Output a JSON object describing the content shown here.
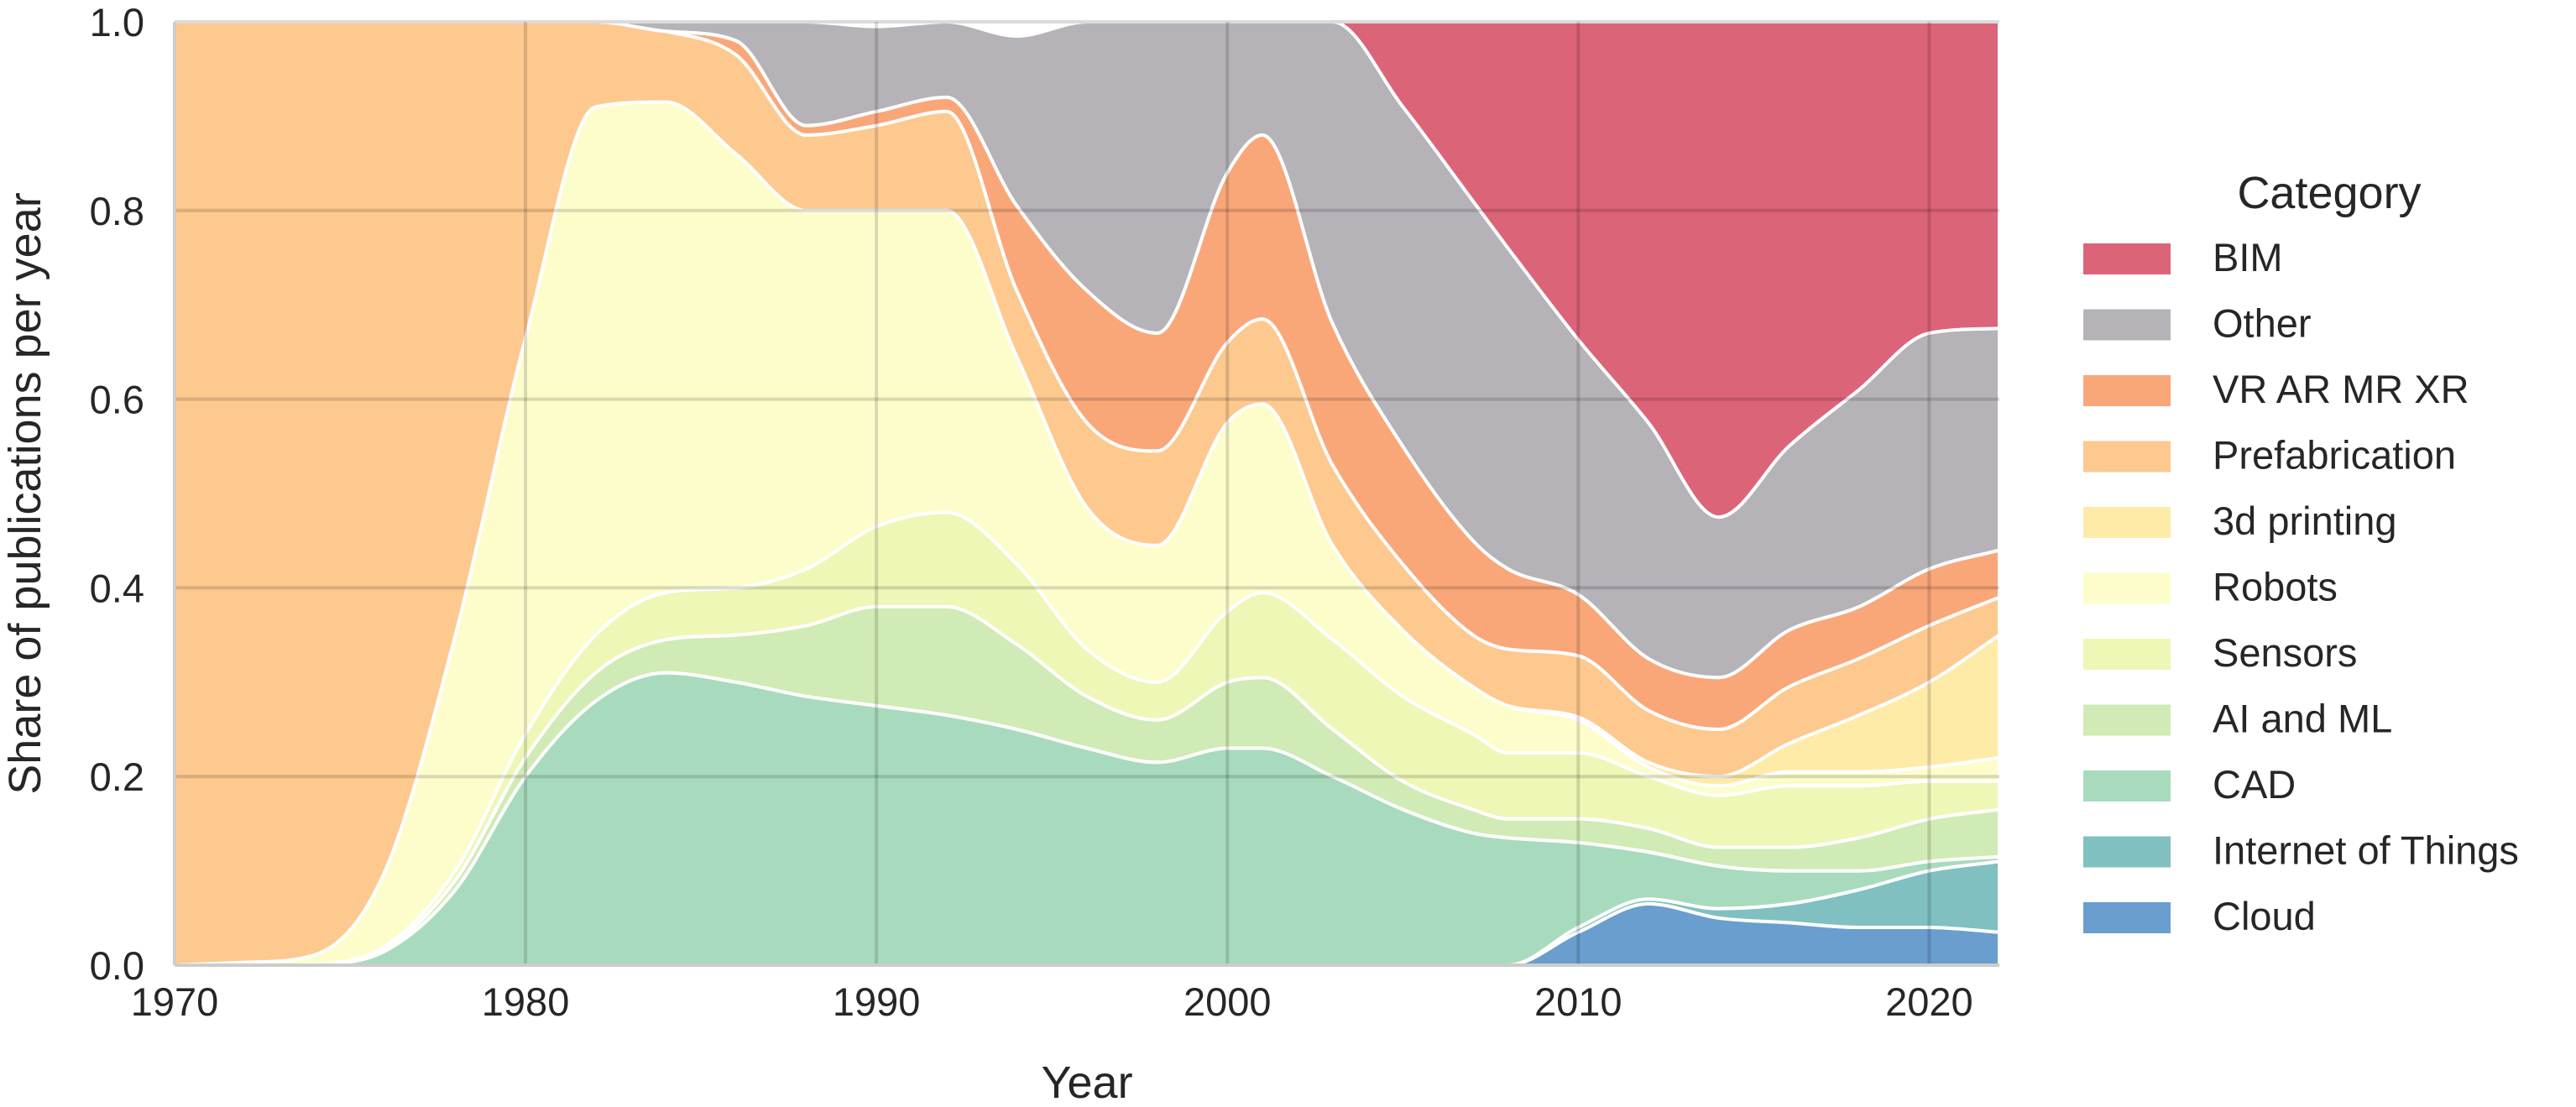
{
  "chart_data": {
    "type": "area",
    "stacked": "normalized",
    "xlabel": "Year",
    "ylabel": "Share of publications per year",
    "xlim": [
      1970,
      2022
    ],
    "ylim": [
      0,
      1
    ],
    "x_ticks": [
      "1970",
      "1980",
      "1990",
      "2000",
      "2010",
      "2020"
    ],
    "y_ticks": [
      "0.0",
      "0.2",
      "0.4",
      "0.6",
      "0.8",
      "1.0"
    ],
    "grid": true,
    "legend": {
      "title": "Category",
      "placement": "right"
    },
    "x": [
      1970,
      1972,
      1974,
      1976,
      1978,
      1980,
      1982,
      1984,
      1986,
      1988,
      1990,
      1992,
      1994,
      1996,
      1998,
      2000,
      2001,
      2003,
      2005,
      2007,
      2008,
      2010,
      2012,
      2014,
      2016,
      2018,
      2020,
      2022
    ],
    "series": [
      {
        "name": "Cloud",
        "color": "#6a9ecf",
        "values": [
          0,
          0,
          0,
          0,
          0,
          0,
          0,
          0,
          0,
          0,
          0,
          0,
          0,
          0,
          0,
          0,
          0,
          0,
          0,
          0,
          0,
          0.035,
          0.065,
          0.05,
          0.045,
          0.04,
          0.04,
          0.035
        ]
      },
      {
        "name": "Internet of Things",
        "color": "#80c0c1",
        "values": [
          0,
          0,
          0,
          0,
          0,
          0,
          0,
          0,
          0,
          0,
          0,
          0,
          0,
          0,
          0,
          0,
          0,
          0,
          0,
          0,
          0,
          0.005,
          0.005,
          0.01,
          0.02,
          0.04,
          0.06,
          0.075
        ]
      },
      {
        "name": "CAD",
        "color": "#a8dbbd",
        "values": [
          0,
          0,
          0.001,
          0.015,
          0.08,
          0.2,
          0.28,
          0.31,
          0.3,
          0.285,
          0.275,
          0.265,
          0.25,
          0.23,
          0.215,
          0.23,
          0.23,
          0.2,
          0.165,
          0.14,
          0.135,
          0.09,
          0.05,
          0.045,
          0.035,
          0.02,
          0.01,
          0.005
        ]
      },
      {
        "name": "AI and ML",
        "color": "#d0ebb5",
        "values": [
          0,
          0,
          0,
          0.002,
          0.01,
          0.02,
          0.03,
          0.035,
          0.05,
          0.075,
          0.105,
          0.115,
          0.09,
          0.055,
          0.045,
          0.07,
          0.075,
          0.05,
          0.03,
          0.025,
          0.02,
          0.025,
          0.025,
          0.02,
          0.025,
          0.035,
          0.045,
          0.05
        ]
      },
      {
        "name": "Sensors",
        "color": "#eef7b6",
        "values": [
          0,
          0,
          0,
          0.003,
          0.01,
          0.025,
          0.04,
          0.05,
          0.05,
          0.06,
          0.085,
          0.1,
          0.085,
          0.05,
          0.04,
          0.075,
          0.09,
          0.095,
          0.09,
          0.08,
          0.07,
          0.07,
          0.055,
          0.055,
          0.065,
          0.055,
          0.04,
          0.03
        ]
      },
      {
        "name": "Robots",
        "color": "#fdfdcc",
        "values": [
          0,
          0.003,
          0.01,
          0.08,
          0.25,
          0.42,
          0.56,
          0.52,
          0.46,
          0.38,
          0.335,
          0.32,
          0.22,
          0.15,
          0.145,
          0.2,
          0.2,
          0.1,
          0.07,
          0.05,
          0.05,
          0.035,
          0.01,
          0.01,
          0.015,
          0.015,
          0.015,
          0.025
        ]
      },
      {
        "name": "3d printing",
        "color": "#feeba7",
        "values": [
          0,
          0,
          0,
          0,
          0,
          0,
          0,
          0,
          0,
          0,
          0,
          0,
          0,
          0,
          0,
          0,
          0,
          0,
          0,
          0,
          0,
          0.003,
          0.005,
          0.01,
          0.03,
          0.06,
          0.09,
          0.13
        ]
      },
      {
        "name": "Prefabrication",
        "color": "#fdc98e",
        "values": [
          1,
          0.997,
          0.99,
          0.9,
          0.65,
          0.335,
          0.09,
          0.075,
          0.105,
          0.08,
          0.09,
          0.105,
          0.07,
          0.09,
          0.1,
          0.085,
          0.09,
          0.085,
          0.07,
          0.055,
          0.06,
          0.065,
          0.055,
          0.05,
          0.06,
          0.06,
          0.06,
          0.04
        ]
      },
      {
        "name": "VR AR MR XR",
        "color": "#f9a779",
        "values": [
          0,
          0,
          0,
          0,
          0,
          0,
          0,
          0,
          0.015,
          0.01,
          0.015,
          0.015,
          0.09,
          0.14,
          0.125,
          0.18,
          0.195,
          0.15,
          0.125,
          0.1,
          0.085,
          0.065,
          0.055,
          0.055,
          0.06,
          0.055,
          0.06,
          0.05
        ]
      },
      {
        "name": "Other",
        "color": "#b5b3b8",
        "values": [
          0,
          0,
          0,
          0,
          0,
          0,
          0,
          0.01,
          0.02,
          0.11,
          0.09,
          0.08,
          0.18,
          0.285,
          0.33,
          0.16,
          0.12,
          0.32,
          0.36,
          0.36,
          0.34,
          0.27,
          0.25,
          0.17,
          0.195,
          0.23,
          0.25,
          0.235
        ]
      },
      {
        "name": "BIM",
        "color": "#dc6479",
        "values": [
          0,
          0,
          0,
          0,
          0,
          0,
          0,
          0,
          0,
          0,
          0,
          0,
          0,
          0,
          0,
          0,
          0,
          0,
          0.09,
          0.19,
          0.24,
          0.352,
          0.445,
          0.525,
          0.45,
          0.39,
          0.33,
          0.325
        ]
      }
    ]
  }
}
